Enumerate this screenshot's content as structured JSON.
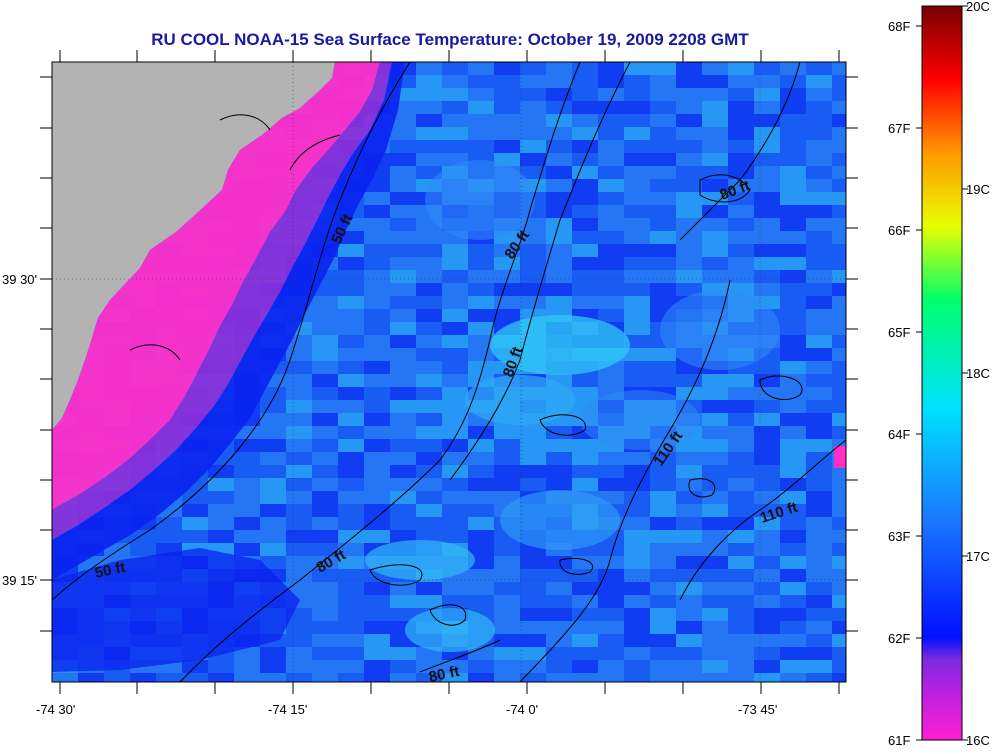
{
  "title": "RU COOL  NOAA-15  Sea Surface Temperature:  October 19, 2009 2208 GMT",
  "map": {
    "lat_labels": [
      "39 30'",
      "39 15'"
    ],
    "lon_labels": [
      "-74 30'",
      "-74 15'",
      "-74 0'",
      "-73 45'"
    ],
    "contour_labels": [
      "50 ft",
      "50 ft",
      "80 ft",
      "80 ft",
      "80 ft",
      "80 ft",
      "80 ft",
      "110 ft",
      "110 ft"
    ]
  },
  "colorbar": {
    "fahrenheit_labels": [
      "68F",
      "67F",
      "66F",
      "65F",
      "64F",
      "63F",
      "62F",
      "61F"
    ],
    "celsius_labels": [
      "20C",
      "19C",
      "18C",
      "17C",
      "16C"
    ],
    "colors": [
      "#ff1fd2",
      "#8a2be2",
      "#0010ff",
      "#1e90ff",
      "#00e5ff",
      "#00ff7f",
      "#ffff00",
      "#ff8c00",
      "#ff0000",
      "#7a0000"
    ]
  },
  "colors": {
    "land": "#b3b3b3",
    "title": "#1a1aa0",
    "warm_pink": "#ff2fc8",
    "purple": "#8b2fd8",
    "deep_blue": "#0a22f0",
    "mid_blue": "#1a5cf4",
    "light_blue": "#2f8cf6",
    "cyan": "#31c8f5"
  }
}
